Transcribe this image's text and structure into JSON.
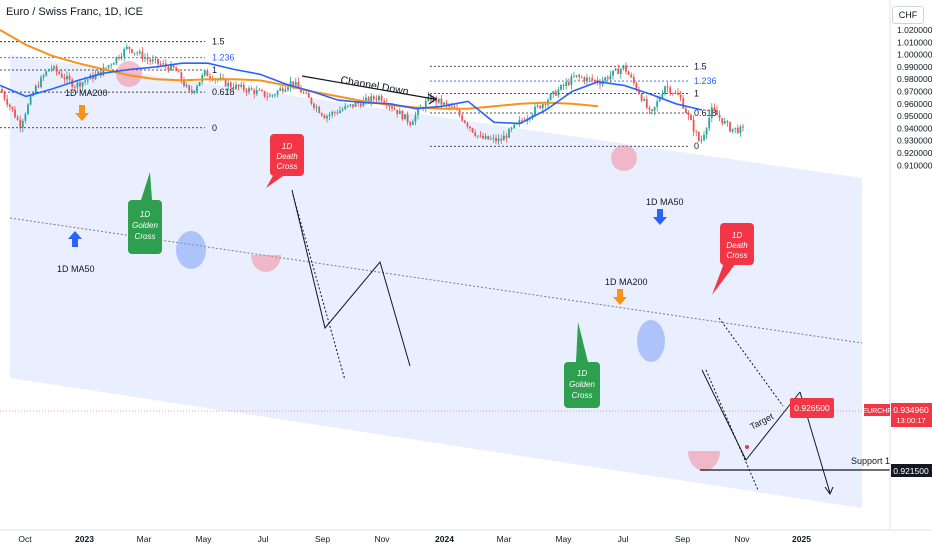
{
  "header": {
    "title": "Euro / Swiss Franc, 1D, ICE"
  },
  "currency_button": "CHF",
  "chart_data": {
    "type": "candlestick",
    "symbol": "EURCHF",
    "price_axis": {
      "ticks": [
        "1.020000",
        "1.010000",
        "1.000000",
        "0.990000",
        "0.980000",
        "0.970000",
        "0.960000",
        "0.950000",
        "0.940000",
        "0.930000",
        "0.920000",
        "0.910000"
      ],
      "range": [
        0.907,
        1.022
      ]
    },
    "time_axis": {
      "ticks": [
        {
          "label": "Oct",
          "bold": false
        },
        {
          "label": "2023",
          "bold": true
        },
        {
          "label": "Mar",
          "bold": false
        },
        {
          "label": "May",
          "bold": false
        },
        {
          "label": "Jul",
          "bold": false
        },
        {
          "label": "Sep",
          "bold": false
        },
        {
          "label": "Nov",
          "bold": false
        },
        {
          "label": "2024",
          "bold": true
        },
        {
          "label": "Mar",
          "bold": false
        },
        {
          "label": "May",
          "bold": false
        },
        {
          "label": "Jul",
          "bold": false
        },
        {
          "label": "Sep",
          "bold": false
        },
        {
          "label": "Nov",
          "bold": false
        },
        {
          "label": "2025",
          "bold": true
        }
      ]
    },
    "current_price": {
      "symbol_label": "EURCHF",
      "value": "0.934960",
      "countdown": "13:00:17",
      "next": "0.930000"
    },
    "target_price": "0.926500",
    "support_price": "0.921500",
    "support_label": "Support 1",
    "target_label": "Target",
    "channel_label": "Channel Down",
    "fib_left": [
      {
        "level": "1.5",
        "price": 1.0105
      },
      {
        "level": "1.236",
        "price": 0.9975
      },
      {
        "level": "1",
        "price": 0.9875
      },
      {
        "level": "0.618",
        "price": 0.9695
      },
      {
        "level": "0",
        "price": 0.9405
      }
    ],
    "fib_right": [
      {
        "level": "1.5",
        "price": 0.9905
      },
      {
        "level": "1.236",
        "price": 0.9785
      },
      {
        "level": "1",
        "price": 0.9685
      },
      {
        "level": "0.618",
        "price": 0.9525
      },
      {
        "level": "0",
        "price": 0.9255
      }
    ],
    "annotations": {
      "ma200_left": "1D MA200",
      "ma50_left": "1D MA50",
      "golden_cross_1": [
        "1D",
        "Golden",
        "Cross"
      ],
      "death_cross_1": [
        "1D",
        "Death",
        "Cross"
      ],
      "ma50_right": "1D MA50",
      "ma200_right": "1D MA200",
      "golden_cross_2": [
        "1D",
        "Golden",
        "Cross"
      ],
      "death_cross_2": [
        "1D",
        "Death",
        "Cross"
      ]
    },
    "ma200": [
      [
        0.0,
        1.02
      ],
      [
        0.05,
        1.008
      ],
      [
        0.1,
        0.999
      ],
      [
        0.15,
        0.993
      ],
      [
        0.2,
        0.988
      ],
      [
        0.25,
        0.983
      ],
      [
        0.3,
        0.98
      ],
      [
        0.35,
        0.979
      ],
      [
        0.4,
        0.98
      ],
      [
        0.45,
        0.98
      ],
      [
        0.5,
        0.979
      ],
      [
        0.55,
        0.975
      ],
      [
        0.6,
        0.97
      ],
      [
        0.65,
        0.966
      ],
      [
        0.7,
        0.962
      ],
      [
        0.75,
        0.959
      ],
      [
        0.8,
        0.957
      ],
      [
        0.85,
        0.956
      ],
      [
        0.9,
        0.956
      ],
      [
        0.95,
        0.958
      ],
      [
        1.0,
        0.96
      ],
      [
        1.05,
        0.961
      ],
      [
        1.1,
        0.96
      ],
      [
        1.15,
        0.958
      ]
    ],
    "ma50": [
      [
        0.0,
        0.975
      ],
      [
        0.05,
        0.966
      ],
      [
        0.1,
        0.972
      ],
      [
        0.15,
        0.979
      ],
      [
        0.2,
        0.985
      ],
      [
        0.25,
        0.988
      ],
      [
        0.3,
        0.99
      ],
      [
        0.35,
        0.993
      ],
      [
        0.4,
        0.993
      ],
      [
        0.45,
        0.988
      ],
      [
        0.5,
        0.984
      ],
      [
        0.55,
        0.976
      ],
      [
        0.6,
        0.97
      ],
      [
        0.65,
        0.963
      ],
      [
        0.7,
        0.961
      ],
      [
        0.75,
        0.96
      ],
      [
        0.8,
        0.956
      ],
      [
        0.85,
        0.958
      ],
      [
        0.9,
        0.962
      ],
      [
        0.95,
        0.945
      ],
      [
        1.0,
        0.944
      ],
      [
        1.05,
        0.955
      ],
      [
        1.1,
        0.97
      ],
      [
        1.15,
        0.978
      ],
      [
        1.2,
        0.975
      ],
      [
        1.25,
        0.968
      ],
      [
        1.3,
        0.96
      ],
      [
        1.35,
        0.955
      ]
    ]
  }
}
